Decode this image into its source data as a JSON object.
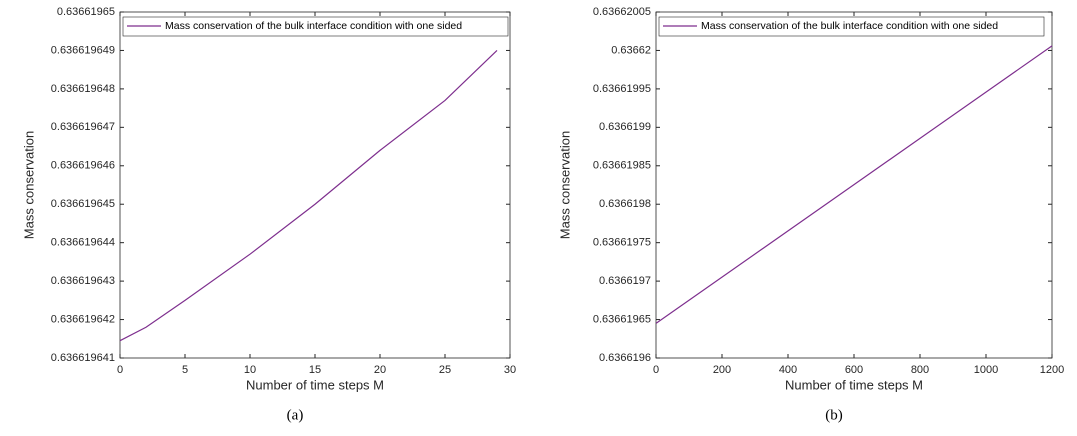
{
  "chart_data": [
    {
      "type": "line",
      "caption": "(a)",
      "xlabel": "Number of time steps M",
      "ylabel": "Mass conservation",
      "x": [
        0,
        2,
        5,
        10,
        15,
        20,
        25,
        29
      ],
      "series": [
        {
          "name": "Mass conservation of the bulk interface condition with one sided",
          "color": "#7e2f8e",
          "values": [
            0.63661964145,
            0.6366196418,
            0.6366196425,
            0.6366196437,
            0.636619645,
            0.6366196464,
            0.6366196477,
            0.636619649
          ]
        }
      ],
      "xlim": [
        0,
        30
      ],
      "xticks": [
        0,
        5,
        10,
        15,
        20,
        25,
        30
      ],
      "ylim": [
        0.636619641,
        0.63661965
      ],
      "yticks": [
        0.636619641,
        0.636619642,
        0.636619643,
        0.636619644,
        0.636619645,
        0.636619646,
        0.636619647,
        0.636619648,
        0.636619649,
        0.63661965
      ],
      "legend": "upper left"
    },
    {
      "type": "line",
      "caption": "(b)",
      "xlabel": "Number of time steps M",
      "ylabel": "Mass conservation",
      "x": [
        0,
        600,
        1200
      ],
      "series": [
        {
          "name": "Mass conservation of the bulk interface condition with one sided",
          "color": "#7e2f8e",
          "values": [
            0.636619645,
            0.6366198255,
            0.636620006
          ]
        }
      ],
      "xlim": [
        0,
        1200
      ],
      "xticks": [
        0,
        200,
        400,
        600,
        800,
        1000,
        1200
      ],
      "ylim": [
        0.6366196,
        0.63662005
      ],
      "yticks": [
        0.6366196,
        0.63661965,
        0.6366197,
        0.63661975,
        0.6366198,
        0.63661985,
        0.6366199,
        0.63661995,
        0.63662,
        0.63662005
      ],
      "legend": "upper left"
    }
  ]
}
